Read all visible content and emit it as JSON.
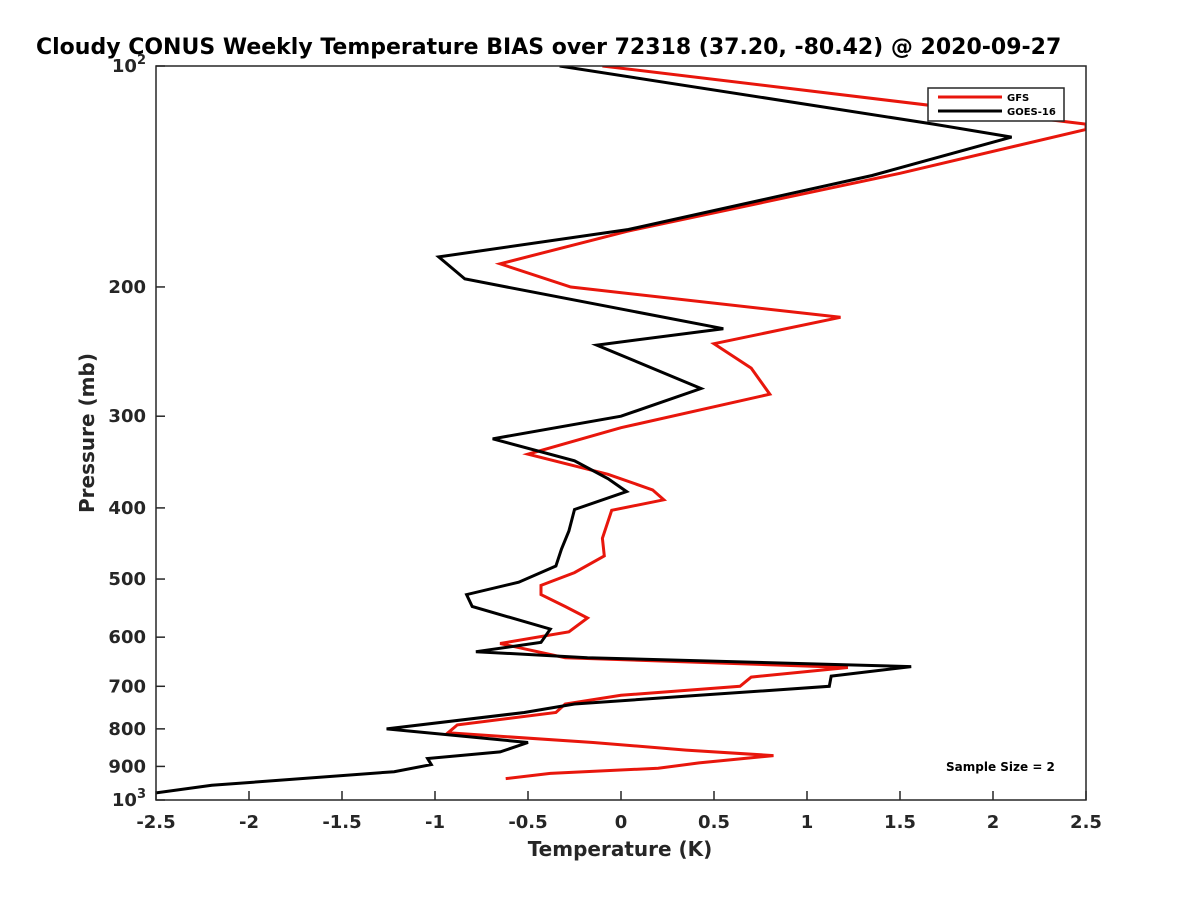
{
  "chart_data": {
    "type": "line",
    "title": "Cloudy CONUS Weekly Temperature BIAS over 72318 (37.20, -80.42) @ 2020-09-27",
    "xlabel": "Temperature (K)",
    "ylabel": "Pressure (mb)",
    "xlim": [
      -2.5,
      2.5
    ],
    "ylim": [
      100,
      1000
    ],
    "yscale": "log",
    "y_reversed": true,
    "x_ticks": [
      "-2.5",
      "-2",
      "-1.5",
      "-1",
      "-0.5",
      "0",
      "0.5",
      "1",
      "1.5",
      "2",
      "2.5"
    ],
    "x_tick_values": [
      -2.5,
      -2,
      -1.5,
      -1,
      -0.5,
      0,
      0.5,
      1,
      1.5,
      2,
      2.5
    ],
    "y_ticks": [
      {
        "value": 100,
        "base": "10",
        "exp": "2"
      },
      {
        "value": 200,
        "label": "200"
      },
      {
        "value": 300,
        "label": "300"
      },
      {
        "value": 400,
        "label": "400"
      },
      {
        "value": 500,
        "label": "500"
      },
      {
        "value": 600,
        "label": "600"
      },
      {
        "value": 700,
        "label": "700"
      },
      {
        "value": 800,
        "label": "800"
      },
      {
        "value": 900,
        "label": "900"
      },
      {
        "value": 1000,
        "base": "10",
        "exp": "3"
      }
    ],
    "legend": {
      "position": "top-right",
      "entries": [
        "GFS",
        "GOES-16"
      ]
    },
    "annotation": "Sample Size = 2",
    "series": [
      {
        "name": "GFS",
        "color": "#e8160c",
        "points": [
          [
            -0.1,
            100
          ],
          [
            2.5,
            120
          ],
          [
            2.5,
            122
          ],
          [
            1.5,
            140
          ],
          [
            0.03,
            168
          ],
          [
            -0.65,
            186
          ],
          [
            -0.27,
            200
          ],
          [
            1.18,
            220
          ],
          [
            0.5,
            239
          ],
          [
            0.7,
            258
          ],
          [
            0.8,
            280
          ],
          [
            0.0,
            311
          ],
          [
            -0.5,
            338
          ],
          [
            -0.07,
            360
          ],
          [
            0.17,
            378
          ],
          [
            0.23,
            390
          ],
          [
            -0.05,
            403
          ],
          [
            -0.1,
            440
          ],
          [
            -0.09,
            465
          ],
          [
            -0.25,
            490
          ],
          [
            -0.43,
            510
          ],
          [
            -0.43,
            525
          ],
          [
            -0.3,
            545
          ],
          [
            -0.18,
            565
          ],
          [
            -0.28,
            590
          ],
          [
            -0.65,
            612
          ],
          [
            -0.3,
            640
          ],
          [
            1.22,
            660
          ],
          [
            0.7,
            680
          ],
          [
            0.64,
            700
          ],
          [
            0.0,
            720
          ],
          [
            -0.3,
            740
          ],
          [
            -0.35,
            760
          ],
          [
            -0.88,
            790
          ],
          [
            -0.93,
            810
          ],
          [
            -0.15,
            835
          ],
          [
            0.35,
            855
          ],
          [
            0.82,
            870
          ],
          [
            0.42,
            890
          ],
          [
            0.2,
            905
          ],
          [
            -0.38,
            920
          ],
          [
            -0.62,
            935
          ]
        ]
      },
      {
        "name": "GOES-16",
        "color": "#000000",
        "points": [
          [
            -0.33,
            100
          ],
          [
            1.68,
            120
          ],
          [
            2.1,
            125
          ],
          [
            1.35,
            141
          ],
          [
            0.04,
            167
          ],
          [
            -0.98,
            182
          ],
          [
            -0.84,
            195
          ],
          [
            0.55,
            228
          ],
          [
            -0.13,
            240
          ],
          [
            0.43,
            275
          ],
          [
            0.0,
            300
          ],
          [
            -0.69,
            322
          ],
          [
            -0.25,
            345
          ],
          [
            -0.07,
            365
          ],
          [
            0.03,
            380
          ],
          [
            -0.25,
            402
          ],
          [
            -0.28,
            430
          ],
          [
            -0.32,
            455
          ],
          [
            -0.35,
            480
          ],
          [
            -0.55,
            505
          ],
          [
            -0.83,
            525
          ],
          [
            -0.8,
            545
          ],
          [
            -0.38,
            585
          ],
          [
            -0.43,
            610
          ],
          [
            -0.78,
            628
          ],
          [
            -0.18,
            640
          ],
          [
            1.56,
            658
          ],
          [
            1.13,
            678
          ],
          [
            1.12,
            700
          ],
          [
            0.42,
            720
          ],
          [
            -0.25,
            740
          ],
          [
            -0.52,
            760
          ],
          [
            -1.26,
            800
          ],
          [
            -0.5,
            835
          ],
          [
            -0.65,
            860
          ],
          [
            -1.04,
            878
          ],
          [
            -1.02,
            895
          ],
          [
            -1.22,
            915
          ],
          [
            -2.2,
            955
          ],
          [
            -2.5,
            978
          ]
        ]
      }
    ]
  }
}
